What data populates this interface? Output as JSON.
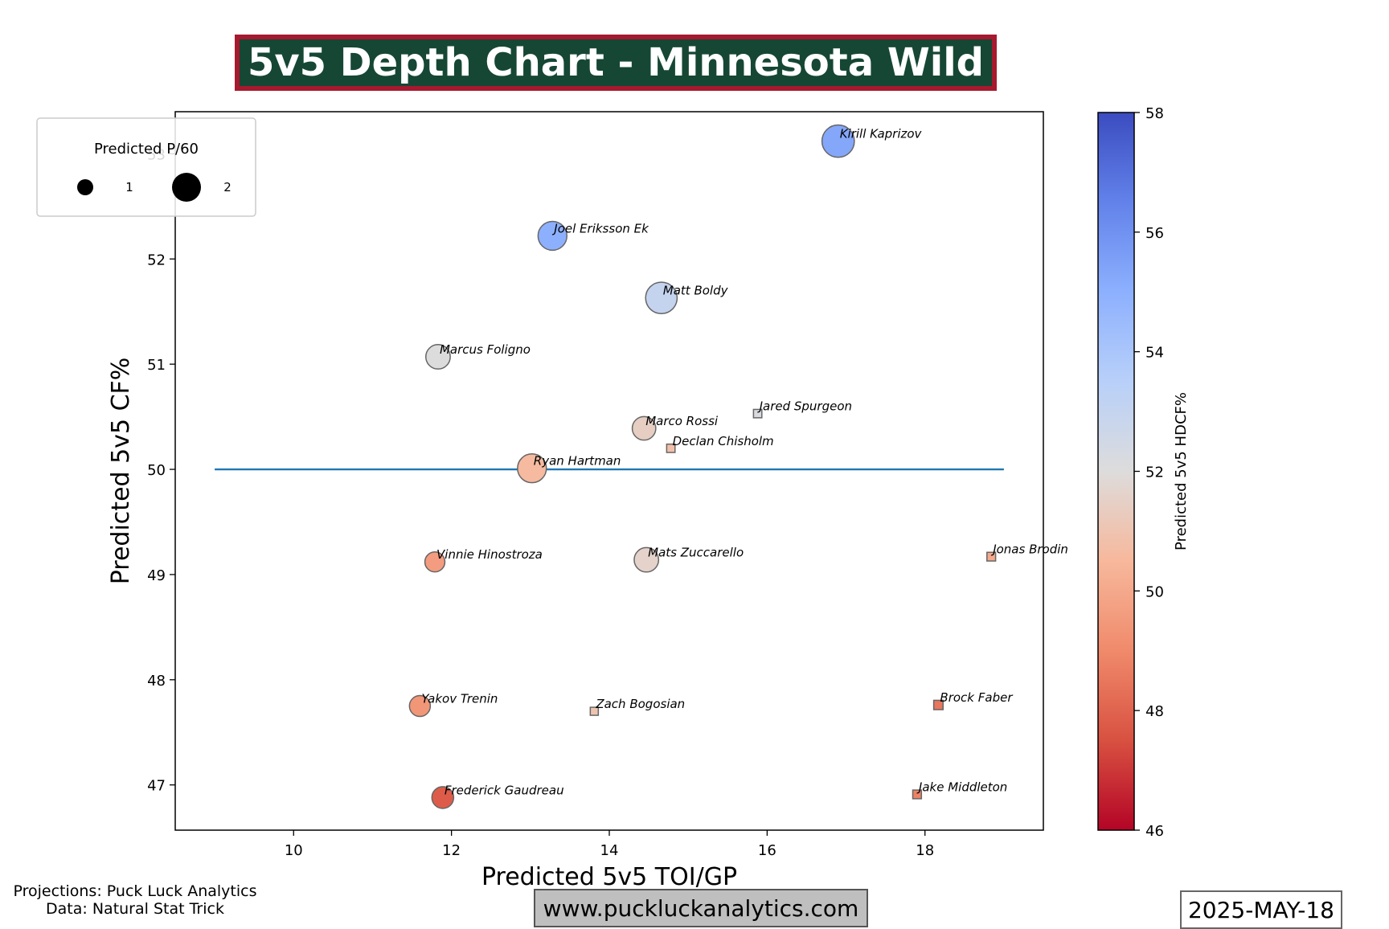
{
  "header": {
    "title": "5v5 Depth Chart - Minnesota Wild"
  },
  "footer": {
    "projections": "Projections: Puck Luck Analytics",
    "data_source": "Data: Natural Stat Trick",
    "website": "www.puckluckanalytics.com",
    "date": "2025-MAY-18"
  },
  "chart_data": {
    "type": "scatter",
    "xlabel": "Predicted 5v5 TOI/GP",
    "ylabel": "Predicted 5v5 CF%",
    "xlim": [
      8.5,
      19.5
    ],
    "ylim": [
      46.57,
      53.4
    ],
    "xticks": [
      10,
      12,
      14,
      16,
      18
    ],
    "yticks": [
      47,
      48,
      49,
      50,
      51,
      52,
      53
    ],
    "reference_line": {
      "y": 50,
      "x_range": [
        9,
        19
      ],
      "color": "#1f77b4"
    },
    "colorbar": {
      "label": "Predicted 5v5 HDCF%",
      "range": [
        46,
        58
      ],
      "ticks": [
        46,
        48,
        50,
        52,
        54,
        56,
        58
      ],
      "colormap": "coolwarm"
    },
    "size_legend": {
      "title": "Predicted P/60",
      "entries": [
        1,
        2
      ]
    },
    "points": [
      {
        "name": "Kirill Kaprizov",
        "x": 16.9,
        "y": 53.12,
        "hdcf": 55.3,
        "p60": 2.3,
        "shape": "circle"
      },
      {
        "name": "Joel Eriksson Ek",
        "x": 13.28,
        "y": 52.22,
        "hdcf": 55.0,
        "p60": 1.9,
        "shape": "circle"
      },
      {
        "name": "Matt Boldy",
        "x": 14.66,
        "y": 51.63,
        "hdcf": 53.0,
        "p60": 2.2,
        "shape": "circle"
      },
      {
        "name": "Marcus Foligno",
        "x": 11.83,
        "y": 51.07,
        "hdcf": 52.0,
        "p60": 1.4,
        "shape": "circle"
      },
      {
        "name": "Jared Spurgeon",
        "x": 15.88,
        "y": 50.53,
        "hdcf": 52.2,
        "p60": 0.6,
        "shape": "square"
      },
      {
        "name": "Marco Rossi",
        "x": 14.44,
        "y": 50.39,
        "hdcf": 51.4,
        "p60": 1.3,
        "shape": "circle"
      },
      {
        "name": "Declan Chisholm",
        "x": 14.78,
        "y": 50.2,
        "hdcf": 50.8,
        "p60": 0.6,
        "shape": "square"
      },
      {
        "name": "Ryan Hartman",
        "x": 13.02,
        "y": 50.01,
        "hdcf": 50.6,
        "p60": 1.9,
        "shape": "circle"
      },
      {
        "name": "Vinnie Hinostroza",
        "x": 11.79,
        "y": 49.12,
        "hdcf": 49.6,
        "p60": 0.9,
        "shape": "circle"
      },
      {
        "name": "Mats Zuccarello",
        "x": 14.47,
        "y": 49.14,
        "hdcf": 51.6,
        "p60": 1.4,
        "shape": "circle"
      },
      {
        "name": "Jonas Brodin",
        "x": 18.84,
        "y": 49.17,
        "hdcf": 50.0,
        "p60": 0.7,
        "shape": "square"
      },
      {
        "name": "Yakov Trenin",
        "x": 11.6,
        "y": 47.75,
        "hdcf": 49.4,
        "p60": 1.0,
        "shape": "circle"
      },
      {
        "name": "Zach Bogosian",
        "x": 13.81,
        "y": 47.7,
        "hdcf": 51.0,
        "p60": 0.5,
        "shape": "square"
      },
      {
        "name": "Brock Faber",
        "x": 18.17,
        "y": 47.76,
        "hdcf": 48.5,
        "p60": 0.9,
        "shape": "square"
      },
      {
        "name": "Frederick Gaudreau",
        "x": 11.89,
        "y": 46.88,
        "hdcf": 47.8,
        "p60": 1.1,
        "shape": "circle"
      },
      {
        "name": "Jake Middleton",
        "x": 17.9,
        "y": 46.91,
        "hdcf": 48.8,
        "p60": 0.7,
        "shape": "square"
      }
    ]
  }
}
